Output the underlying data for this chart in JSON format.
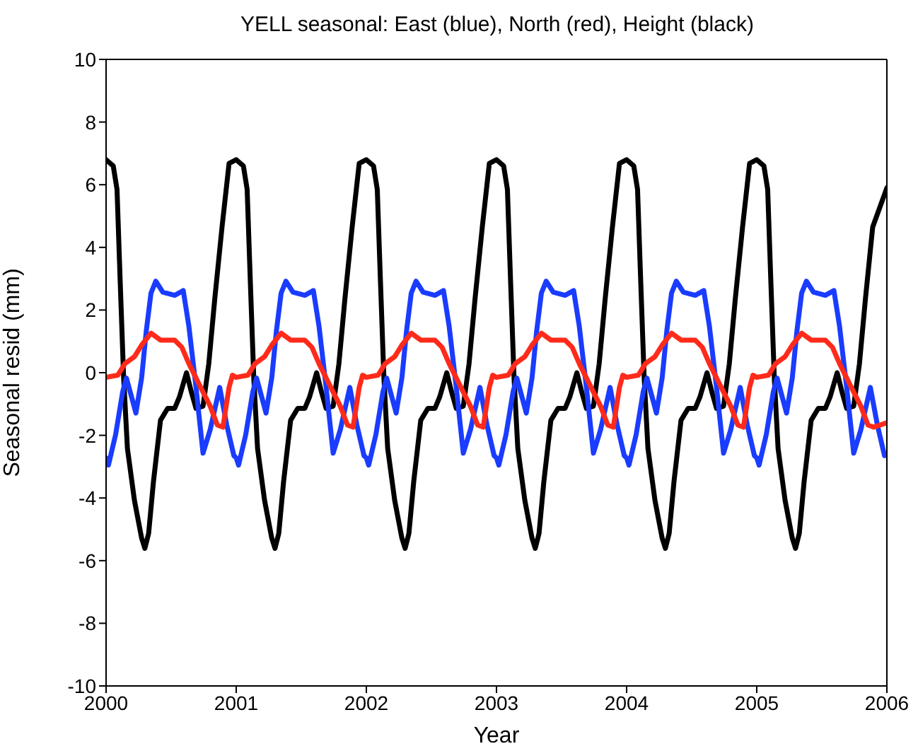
{
  "chart_data": {
    "type": "line",
    "title": "YELL seasonal: East (blue), North (red), Height (black)",
    "xlabel": "Year",
    "ylabel": "Seasonal resid (mm)",
    "xlim": [
      2000,
      2006
    ],
    "xticks": [
      2000,
      2001,
      2002,
      2003,
      2004,
      2005,
      2006
    ],
    "ylim": [
      -10,
      10
    ],
    "yticks": [
      -10,
      -8,
      -6,
      -4,
      -2,
      0,
      2,
      4,
      6,
      8,
      10
    ],
    "grid": false,
    "marker": "none",
    "line_style": "solid",
    "series": [
      {
        "color": "#000000",
        "x": [
          2000,
          2000.055,
          2000.084,
          2000.109,
          2000.135,
          2000.164,
          2000.218,
          2000.273,
          2000.298,
          2000.327,
          2000.364,
          2000.418,
          2000.473,
          2000.527,
          2000.564,
          2000.618,
          2000.655,
          2000.691,
          2000.745,
          2000.789,
          2000.836,
          2000.891,
          2000.945,
          2001,
          2001.055,
          2001.084,
          2001.109,
          2001.135,
          2001.164,
          2001.218,
          2001.273,
          2001.298,
          2001.327,
          2001.364,
          2001.418,
          2001.473,
          2001.527,
          2001.564,
          2001.618,
          2001.655,
          2001.691,
          2001.745,
          2001.789,
          2001.836,
          2001.891,
          2001.945,
          2002,
          2002.055,
          2002.084,
          2002.109,
          2002.135,
          2002.164,
          2002.218,
          2002.273,
          2002.298,
          2002.327,
          2002.364,
          2002.418,
          2002.473,
          2002.527,
          2002.564,
          2002.618,
          2002.655,
          2002.691,
          2002.745,
          2002.789,
          2002.836,
          2002.891,
          2002.945,
          2003,
          2003.055,
          2003.084,
          2003.109,
          2003.135,
          2003.164,
          2003.218,
          2003.273,
          2003.298,
          2003.327,
          2003.364,
          2003.418,
          2003.473,
          2003.527,
          2003.564,
          2003.618,
          2003.655,
          2003.691,
          2003.745,
          2003.789,
          2003.836,
          2003.891,
          2003.945,
          2004,
          2004.055,
          2004.084,
          2004.109,
          2004.135,
          2004.164,
          2004.218,
          2004.273,
          2004.298,
          2004.327,
          2004.364,
          2004.418,
          2004.473,
          2004.527,
          2004.564,
          2004.618,
          2004.655,
          2004.691,
          2004.745,
          2004.789,
          2004.836,
          2004.891,
          2004.945,
          2005,
          2005.055,
          2005.084,
          2005.109,
          2005.135,
          2005.164,
          2005.218,
          2005.273,
          2005.298,
          2005.327,
          2005.364,
          2005.418,
          2005.473,
          2005.527,
          2005.564,
          2005.618,
          2005.655,
          2005.691,
          2005.745,
          2005.789,
          2005.836,
          2005.891,
          2006
        ],
        "values": [
          6.8,
          6.6,
          5.85,
          2.84,
          -0.17,
          -2.42,
          -4.08,
          -5.28,
          -5.61,
          -5.13,
          -3.48,
          -1.52,
          -1.14,
          -1.14,
          -0.77,
          0,
          -0.61,
          -1.14,
          -1.07,
          0.28,
          2.39,
          4.65,
          6.68,
          6.8,
          6.6,
          5.85,
          2.84,
          -0.17,
          -2.42,
          -4.08,
          -5.28,
          -5.61,
          -5.13,
          -3.48,
          -1.52,
          -1.14,
          -1.14,
          -0.77,
          0,
          -0.61,
          -1.14,
          -1.07,
          0.28,
          2.39,
          4.65,
          6.68,
          6.8,
          6.6,
          5.85,
          2.84,
          -0.17,
          -2.42,
          -4.08,
          -5.28,
          -5.61,
          -5.13,
          -3.48,
          -1.52,
          -1.14,
          -1.14,
          -0.77,
          0,
          -0.61,
          -1.14,
          -1.07,
          0.28,
          2.39,
          4.65,
          6.68,
          6.8,
          6.6,
          5.85,
          2.84,
          -0.17,
          -2.42,
          -4.08,
          -5.28,
          -5.61,
          -5.13,
          -3.48,
          -1.52,
          -1.14,
          -1.14,
          -0.77,
          0,
          -0.61,
          -1.14,
          -1.07,
          0.28,
          2.39,
          4.65,
          6.68,
          6.8,
          6.6,
          5.85,
          2.84,
          -0.17,
          -2.42,
          -4.08,
          -5.28,
          -5.61,
          -5.13,
          -3.48,
          -1.52,
          -1.14,
          -1.14,
          -0.77,
          0,
          -0.61,
          -1.14,
          -1.07,
          0.28,
          2.39,
          4.65,
          6.68,
          6.8,
          6.6,
          5.85,
          2.84,
          -0.17,
          -2.42,
          -4.08,
          -5.28,
          -5.61,
          -5.13,
          -3.48,
          -1.52,
          -1.14,
          -1.14,
          -0.77,
          0,
          -0.61,
          -1.14,
          -1.07,
          0.28,
          2.39,
          4.65,
          5.9
        ]
      },
      {
        "color": "#1a3cff",
        "x": [
          2000,
          2000.018,
          2000.073,
          2000.127,
          2000.156,
          2000.2,
          2000.229,
          2000.273,
          2000.309,
          2000.345,
          2000.382,
          2000.436,
          2000.527,
          2000.593,
          2000.636,
          2000.691,
          2000.745,
          2000.8,
          2000.873,
          2000.927,
          2000.982,
          2001,
          2001.018,
          2001.073,
          2001.127,
          2001.156,
          2001.2,
          2001.229,
          2001.273,
          2001.309,
          2001.345,
          2001.382,
          2001.436,
          2001.527,
          2001.593,
          2001.636,
          2001.691,
          2001.745,
          2001.8,
          2001.873,
          2001.927,
          2001.982,
          2002,
          2002.018,
          2002.073,
          2002.127,
          2002.156,
          2002.2,
          2002.229,
          2002.273,
          2002.309,
          2002.345,
          2002.382,
          2002.436,
          2002.527,
          2002.593,
          2002.636,
          2002.691,
          2002.745,
          2002.8,
          2002.873,
          2002.927,
          2002.982,
          2003,
          2003.018,
          2003.073,
          2003.127,
          2003.156,
          2003.2,
          2003.229,
          2003.273,
          2003.309,
          2003.345,
          2003.382,
          2003.436,
          2003.527,
          2003.593,
          2003.636,
          2003.691,
          2003.745,
          2003.8,
          2003.873,
          2003.927,
          2003.982,
          2004,
          2004.018,
          2004.073,
          2004.127,
          2004.156,
          2004.2,
          2004.229,
          2004.273,
          2004.309,
          2004.345,
          2004.382,
          2004.436,
          2004.527,
          2004.593,
          2004.636,
          2004.691,
          2004.745,
          2004.8,
          2004.873,
          2004.927,
          2004.982,
          2005,
          2005.018,
          2005.073,
          2005.127,
          2005.156,
          2005.2,
          2005.229,
          2005.273,
          2005.309,
          2005.345,
          2005.382,
          2005.436,
          2005.527,
          2005.593,
          2005.636,
          2005.691,
          2005.745,
          2005.8,
          2005.873,
          2005.927,
          2005.982
        ],
        "values": [
          -2.72,
          -2.95,
          -1.98,
          -0.62,
          -0.17,
          -0.84,
          -1.29,
          -0.17,
          1.34,
          2.54,
          2.92,
          2.57,
          2.47,
          2.62,
          1.49,
          -0.47,
          -2.57,
          -1.82,
          -0.47,
          -1.67,
          -2.65,
          -2.72,
          -2.95,
          -1.98,
          -0.62,
          -0.17,
          -0.84,
          -1.29,
          -0.17,
          1.34,
          2.54,
          2.92,
          2.57,
          2.47,
          2.62,
          1.49,
          -0.47,
          -2.57,
          -1.82,
          -0.47,
          -1.67,
          -2.65,
          -2.72,
          -2.95,
          -1.98,
          -0.62,
          -0.17,
          -0.84,
          -1.29,
          -0.17,
          1.34,
          2.54,
          2.92,
          2.57,
          2.47,
          2.62,
          1.49,
          -0.47,
          -2.57,
          -1.82,
          -0.47,
          -1.67,
          -2.65,
          -2.72,
          -2.95,
          -1.98,
          -0.62,
          -0.17,
          -0.84,
          -1.29,
          -0.17,
          1.34,
          2.54,
          2.92,
          2.57,
          2.47,
          2.62,
          1.49,
          -0.47,
          -2.57,
          -1.82,
          -0.47,
          -1.67,
          -2.65,
          -2.72,
          -2.95,
          -1.98,
          -0.62,
          -0.17,
          -0.84,
          -1.29,
          -0.17,
          1.34,
          2.54,
          2.92,
          2.57,
          2.47,
          2.62,
          1.49,
          -0.47,
          -2.57,
          -1.82,
          -0.47,
          -1.67,
          -2.65,
          -2.72,
          -2.95,
          -1.98,
          -0.62,
          -0.17,
          -0.84,
          -1.29,
          -0.17,
          1.34,
          2.54,
          2.92,
          2.57,
          2.47,
          2.62,
          1.49,
          -0.47,
          -2.57,
          -1.82,
          -0.47,
          -1.67,
          -2.65
        ]
      },
      {
        "color": "#ff2a1a",
        "x": [
          2000,
          2000.09,
          2000.145,
          2000.218,
          2000.273,
          2000.345,
          2000.418,
          2000.527,
          2000.582,
          2000.636,
          2000.727,
          2000.8,
          2000.855,
          2000.898,
          2000.945,
          2000.971,
          2001,
          2001.09,
          2001.145,
          2001.218,
          2001.273,
          2001.345,
          2001.418,
          2001.527,
          2001.582,
          2001.636,
          2001.727,
          2001.8,
          2001.855,
          2001.898,
          2001.945,
          2001.971,
          2002,
          2002.09,
          2002.145,
          2002.218,
          2002.273,
          2002.345,
          2002.418,
          2002.527,
          2002.582,
          2002.636,
          2002.727,
          2002.8,
          2002.855,
          2002.898,
          2002.945,
          2002.971,
          2003,
          2003.09,
          2003.145,
          2003.218,
          2003.273,
          2003.345,
          2003.418,
          2003.527,
          2003.582,
          2003.636,
          2003.727,
          2003.8,
          2003.855,
          2003.898,
          2003.945,
          2003.971,
          2004,
          2004.09,
          2004.145,
          2004.218,
          2004.273,
          2004.345,
          2004.418,
          2004.527,
          2004.582,
          2004.636,
          2004.727,
          2004.8,
          2004.855,
          2004.898,
          2004.945,
          2004.971,
          2005,
          2005.09,
          2005.145,
          2005.218,
          2005.273,
          2005.345,
          2005.418,
          2005.527,
          2005.582,
          2005.636,
          2005.727,
          2005.8,
          2005.855,
          2005.898,
          2006
        ],
        "values": [
          -0.15,
          -0.08,
          0.29,
          0.51,
          0.88,
          1.26,
          1.04,
          1.04,
          0.81,
          0.29,
          -0.47,
          -1.07,
          -1.67,
          -1.74,
          -0.47,
          -0.08,
          -0.15,
          -0.08,
          0.29,
          0.51,
          0.88,
          1.26,
          1.04,
          1.04,
          0.81,
          0.29,
          -0.47,
          -1.07,
          -1.67,
          -1.74,
          -0.47,
          -0.08,
          -0.15,
          -0.08,
          0.29,
          0.51,
          0.88,
          1.26,
          1.04,
          1.04,
          0.81,
          0.29,
          -0.47,
          -1.07,
          -1.67,
          -1.74,
          -0.47,
          -0.08,
          -0.15,
          -0.08,
          0.29,
          0.51,
          0.88,
          1.26,
          1.04,
          1.04,
          0.81,
          0.29,
          -0.47,
          -1.07,
          -1.67,
          -1.74,
          -0.47,
          -0.08,
          -0.15,
          -0.08,
          0.29,
          0.51,
          0.88,
          1.26,
          1.04,
          1.04,
          0.81,
          0.29,
          -0.47,
          -1.07,
          -1.67,
          -1.74,
          -0.47,
          -0.08,
          -0.15,
          -0.08,
          0.29,
          0.51,
          0.88,
          1.26,
          1.04,
          1.04,
          0.81,
          0.29,
          -0.47,
          -1.07,
          -1.67,
          -1.74,
          -1.6
        ]
      }
    ]
  }
}
